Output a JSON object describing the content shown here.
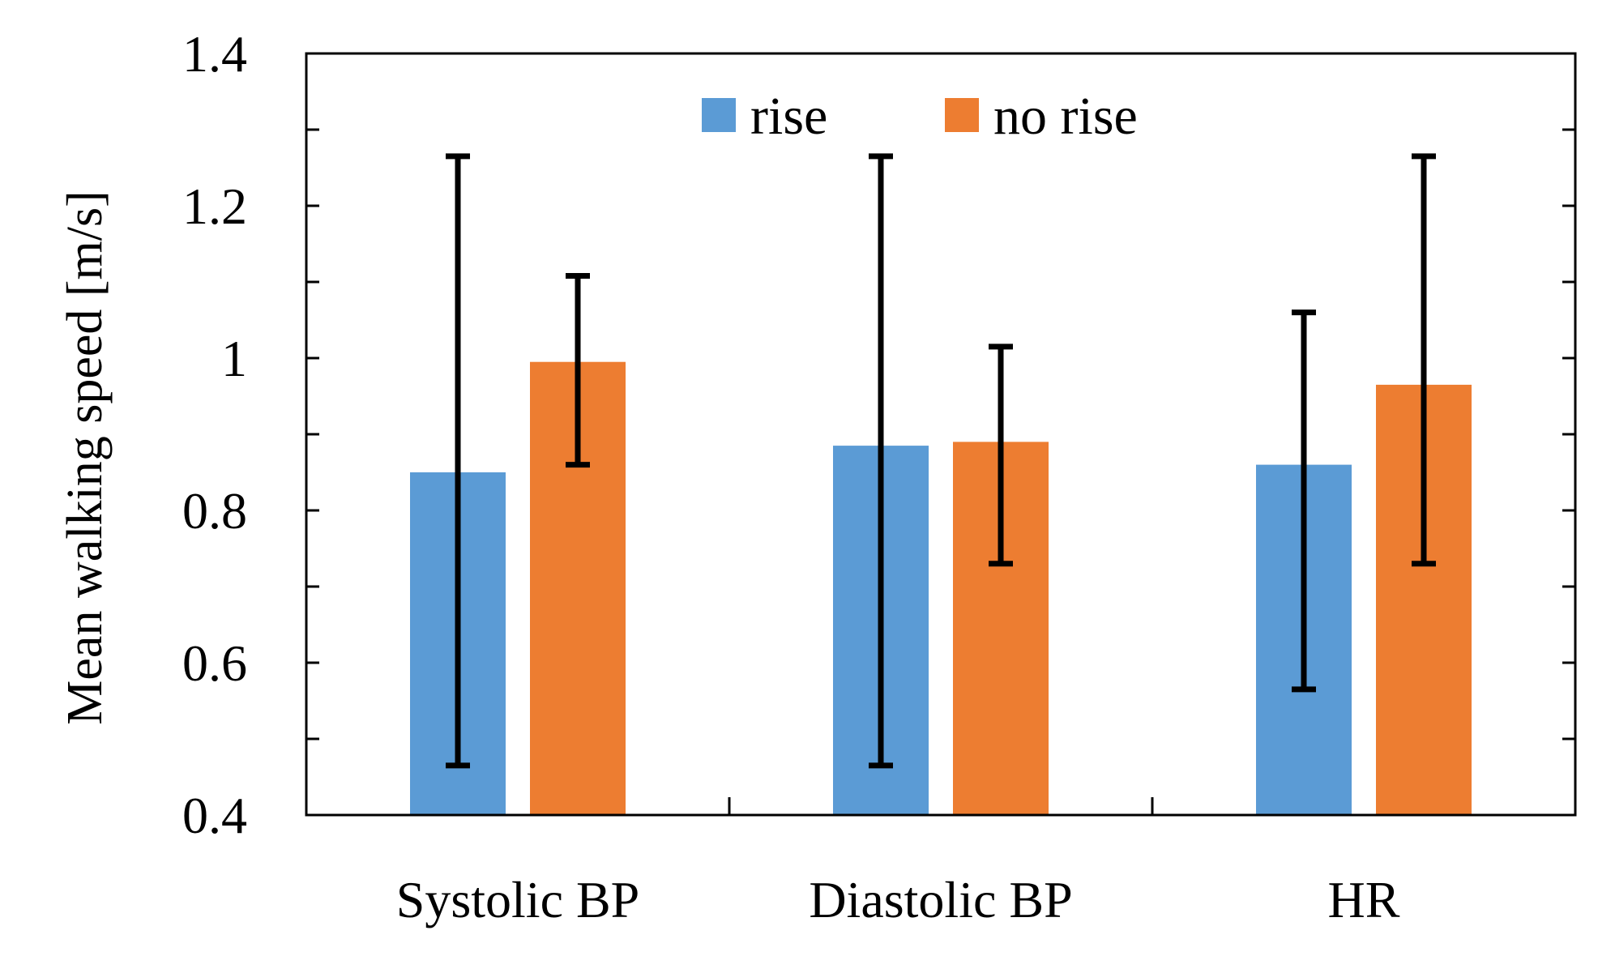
{
  "chart_data": {
    "type": "bar",
    "title": "",
    "xlabel": "",
    "ylabel": "Mean walking speed [m/s]",
    "ylim": [
      0.4,
      1.4
    ],
    "yticks": [
      0.4,
      0.6,
      0.8,
      1,
      1.2,
      1.4
    ],
    "ytick_labels": [
      "0.4",
      "0.6",
      "0.8",
      "1",
      "1.2",
      "1.4"
    ],
    "minor_step": 0.1,
    "legend_position": "top-center",
    "categories": [
      "Systolic BP",
      "Diastolic BP",
      "HR"
    ],
    "series": [
      {
        "name": "rise",
        "color": "#5B9BD5",
        "values": [
          0.85,
          0.885,
          0.86
        ],
        "err_low": [
          0.465,
          0.465,
          0.565
        ],
        "err_high": [
          1.265,
          1.265,
          1.06
        ]
      },
      {
        "name": "no rise",
        "color": "#ED7D31",
        "values": [
          0.995,
          0.89,
          0.965
        ],
        "err_low": [
          0.86,
          0.73,
          0.73
        ],
        "err_high": [
          1.108,
          1.015,
          1.265
        ]
      }
    ]
  }
}
